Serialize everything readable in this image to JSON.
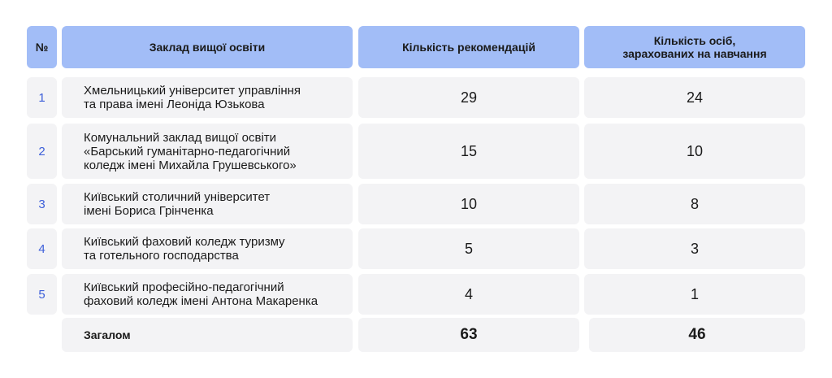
{
  "header": {
    "num": "№",
    "institution": "Заклад вищої освіти",
    "recommendations": "Кількість рекомендацій",
    "enrolled_line1": "Кількість осіб,",
    "enrolled_line2": "зарахованих на навчання"
  },
  "rows": [
    {
      "num": "1",
      "name_lines": [
        "Хмельницький університет управління",
        "та права імені Леоніда Юзькова"
      ],
      "recommendations": "29",
      "enrolled": "24"
    },
    {
      "num": "2",
      "name_lines": [
        "Комунальний заклад вищої освіти",
        "«Барський гуманітарно-педагогічний",
        "коледж імені Михайла Грушевського»"
      ],
      "recommendations": "15",
      "enrolled": "10"
    },
    {
      "num": "3",
      "name_lines": [
        "Київський столичний університет",
        "імені Бориса Грінченка"
      ],
      "recommendations": "10",
      "enrolled": "8"
    },
    {
      "num": "4",
      "name_lines": [
        "Київський фаховий коледж туризму",
        "та готельного господарства"
      ],
      "recommendations": "5",
      "enrolled": "3"
    },
    {
      "num": "5",
      "name_lines": [
        "Київський професійно-педагогічний",
        "фаховий коледж імені Антона Макаренка"
      ],
      "recommendations": "4",
      "enrolled": "1"
    }
  ],
  "total": {
    "label": "Загалом",
    "recommendations": "63",
    "enrolled": "46"
  },
  "colors": {
    "header_bg": "#a2bdf7",
    "row_bg": "#f3f3f5",
    "number_color": "#3d5fd9"
  }
}
